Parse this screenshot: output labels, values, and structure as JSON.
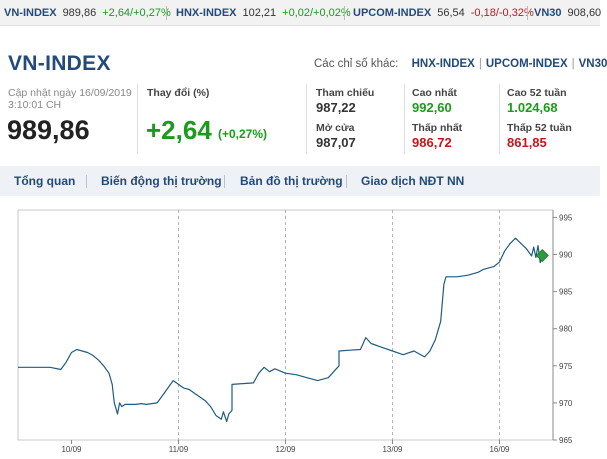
{
  "ticker": [
    {
      "name": "VN-INDEX",
      "value": "989,86",
      "change": "+2,64/+0,27%",
      "dir": "up"
    },
    {
      "name": "HNX-INDEX",
      "value": "102,21",
      "change": "+0,02/+0,02%",
      "dir": "up"
    },
    {
      "name": "UPCOM-INDEX",
      "value": "56,54",
      "change": "-0,18/-0,32%",
      "dir": "down"
    },
    {
      "name": "VN30",
      "value": "908,60",
      "change": "",
      "dir": "up"
    }
  ],
  "header": {
    "title": "VN-INDEX",
    "others_label": "Các chỉ số khác:",
    "others": [
      "HNX-INDEX",
      "UPCOM-INDEX",
      "VN30"
    ],
    "updated_line1": "Cập nhật ngày 16/09/2019",
    "updated_line2": "3:10:01 CH",
    "price": "989,86",
    "change_label": "Thay đổi (%)",
    "change_value": "+2,64",
    "change_pct": "(+0,27%)"
  },
  "stats": {
    "ref_label": "Tham chiếu",
    "ref_value": "987,22",
    "open_label": "Mở cửa",
    "open_value": "987,07",
    "high_label": "Cao nhất",
    "high_value": "992,60",
    "low_label": "Thấp nhất",
    "low_value": "986,72",
    "high52_label": "Cao 52 tuần",
    "high52_value": "1.024,68",
    "low52_label": "Thấp 52 tuần",
    "low52_value": "861,85"
  },
  "tabs": [
    "Tổng quan",
    "Biến động thị trường",
    "Bản đồ thị trường",
    "Giao dịch NĐT NN"
  ],
  "colors": {
    "up": "#1a9c1a",
    "down": "#c4161c",
    "line": "#1f5c80",
    "brand": "#224a7a"
  },
  "chart_data": {
    "type": "line",
    "title": "",
    "xlabel": "",
    "ylabel": "",
    "x_ticks": [
      "10/09",
      "11/09",
      "12/09",
      "13/09",
      "16/09"
    ],
    "y_ticks": [
      965,
      970,
      975,
      980,
      985,
      990,
      995
    ],
    "ylim": [
      965,
      996
    ],
    "y_axis_side": "right",
    "grid": "vertical dashed at day boundaries",
    "series": [
      {
        "name": "",
        "x": [
          0,
          0.1,
          0.2,
          0.3,
          0.4,
          0.45,
          0.5,
          0.55,
          0.6,
          0.65,
          0.7,
          0.75,
          0.8,
          0.85,
          0.88,
          0.9,
          0.93,
          0.95,
          0.97,
          1.0,
          1.0,
          1.05,
          1.1,
          1.15,
          1.2,
          1.3,
          1.35,
          1.4,
          1.45,
          1.5,
          1.55,
          1.6,
          1.65,
          1.7,
          1.75,
          1.8,
          1.85,
          1.9,
          1.92,
          1.95,
          1.97,
          2.0,
          2.0,
          2.1,
          2.2,
          2.25,
          2.3,
          2.35,
          2.4,
          2.5,
          2.6,
          2.7,
          2.8,
          2.9,
          3.0,
          3.0,
          3.1,
          3.2,
          3.25,
          3.3,
          3.4,
          3.5,
          3.6,
          3.7,
          3.8,
          3.85,
          3.9,
          3.95,
          3.98,
          4.0,
          4.0,
          4.1,
          4.2,
          4.3,
          4.35,
          4.4,
          4.45,
          4.5,
          4.55,
          4.6,
          4.65,
          4.7,
          4.75,
          4.78,
          4.8,
          4.82,
          4.84,
          4.86,
          4.88,
          4.9
        ],
        "values": [
          974.8,
          974.8,
          974.8,
          974.8,
          974.5,
          975.5,
          976.8,
          977.2,
          977.0,
          976.8,
          976.4,
          975.8,
          975.0,
          974.0,
          972.5,
          970.0,
          968.5,
          970.0,
          969.5,
          969.8,
          969.8,
          969.8,
          969.8,
          969.9,
          969.8,
          970.0,
          971.0,
          972.0,
          973.0,
          972.5,
          972.0,
          971.8,
          971.3,
          970.8,
          970.3,
          969.5,
          968.3,
          967.8,
          968.8,
          967.5,
          968.5,
          969.0,
          972.5,
          972.6,
          972.7,
          974.0,
          974.8,
          974.2,
          974.6,
          974.0,
          973.8,
          973.4,
          973.0,
          973.4,
          975.0,
          977.0,
          977.1,
          977.2,
          978.8,
          978.0,
          977.5,
          977.0,
          976.5,
          977.0,
          976.2,
          977.0,
          978.5,
          981.0,
          986.0,
          987.0,
          987.0,
          987.0,
          987.2,
          987.6,
          988.0,
          988.2,
          988.4,
          989.0,
          990.5,
          991.5,
          992.2,
          991.5,
          990.8,
          990.2,
          989.8,
          991.0,
          989.6,
          991.2,
          988.9,
          989.86
        ]
      }
    ],
    "last_marker": {
      "x": 4.9,
      "value": 989.86
    }
  }
}
